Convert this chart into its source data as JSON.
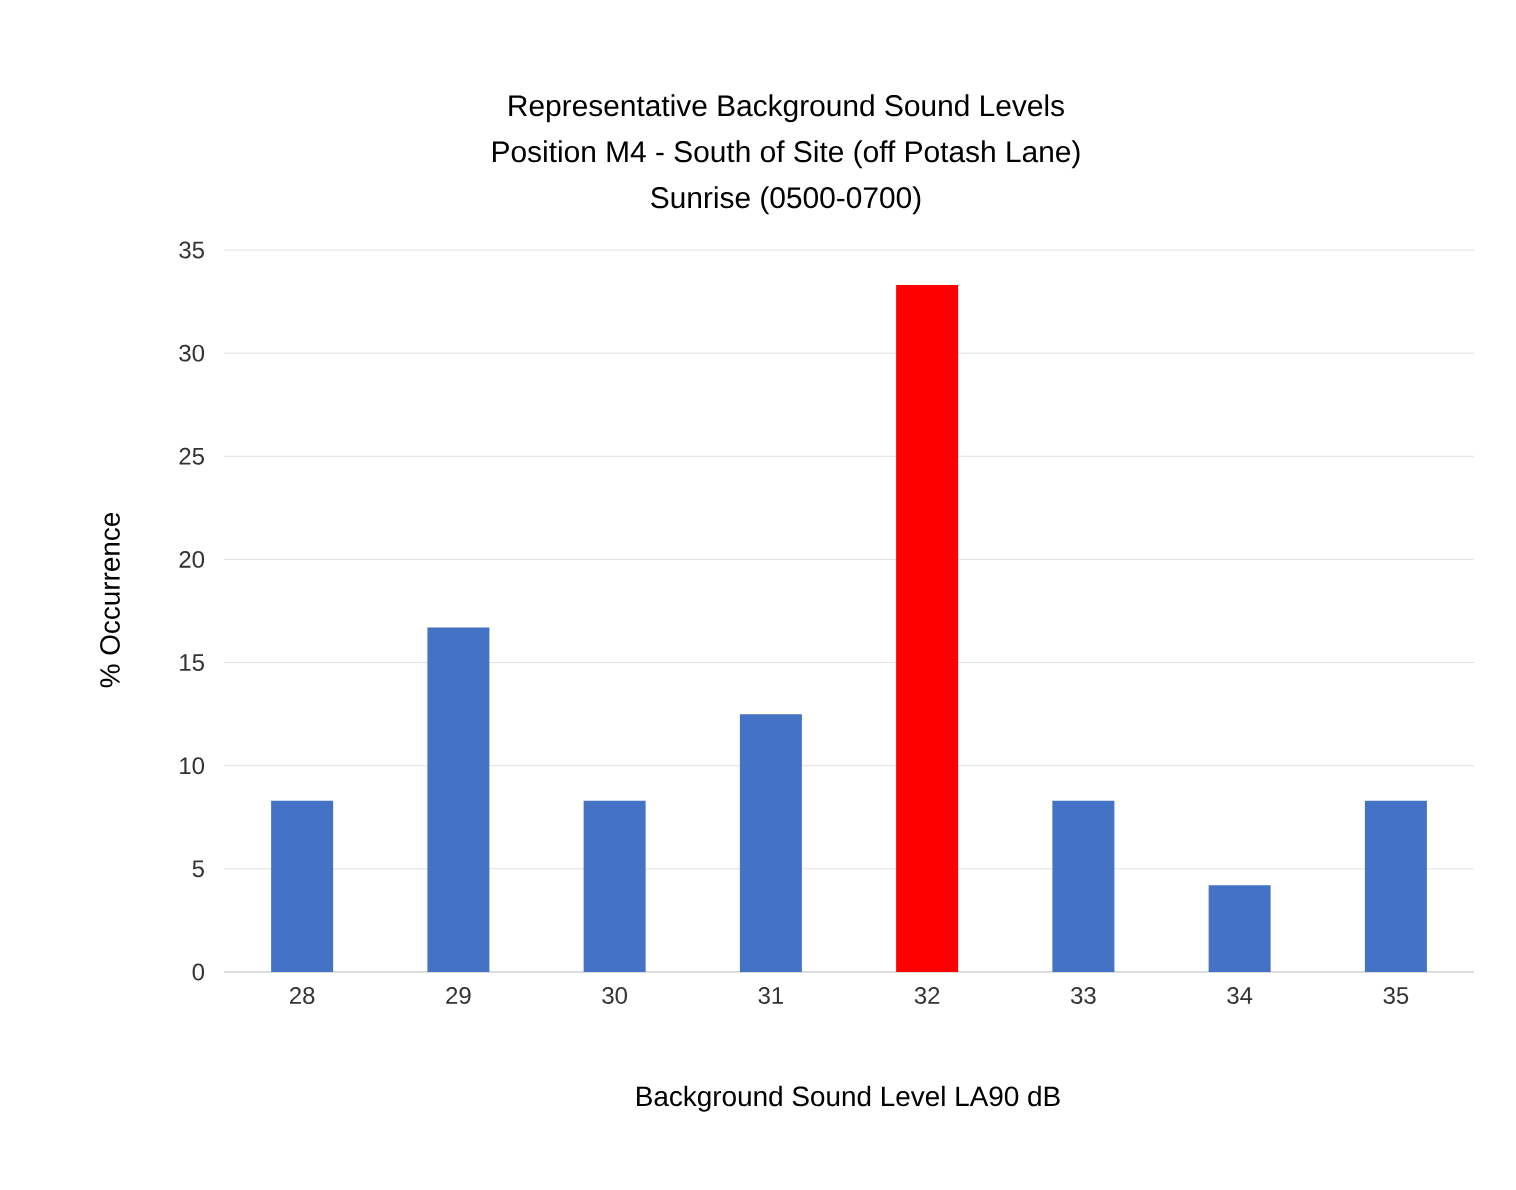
{
  "chart_data": {
    "type": "bar",
    "title": "Representative  Background Sound Levels",
    "subtitle": "Position  M4 - South of Site (off Potash Lane)",
    "annotations": [
      "Sunrise  (0500-0700)"
    ],
    "xlabel": "Background Sound Level LA90 dB",
    "ylabel": "% Occurrence",
    "categories": [
      "28",
      "29",
      "30",
      "31",
      "32",
      "33",
      "34",
      "35"
    ],
    "values": [
      8.3,
      16.7,
      8.3,
      12.5,
      33.3,
      8.3,
      4.2,
      8.3
    ],
    "colors": [
      "#4472c4",
      "#4472c4",
      "#4472c4",
      "#4472c4",
      "#ff0000",
      "#4472c4",
      "#4472c4",
      "#4472c4"
    ],
    "ylim": [
      0,
      35
    ],
    "yticks": [
      0,
      5,
      10,
      15,
      20,
      25,
      30,
      35
    ],
    "grid": "y"
  }
}
